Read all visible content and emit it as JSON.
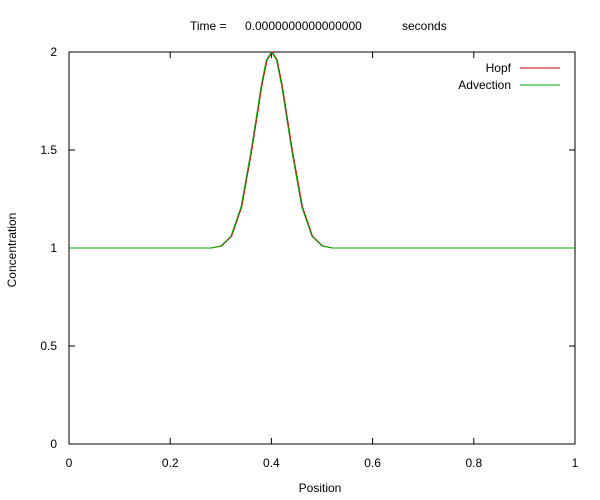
{
  "chart_data": {
    "type": "line",
    "title": {
      "prefix": "Time =",
      "value": "0.0000000000000000",
      "unit": "seconds"
    },
    "xlabel": "Position",
    "ylabel": "Concentration",
    "xlim": [
      0,
      1
    ],
    "ylim": [
      0,
      2
    ],
    "x_ticks": [
      "0",
      "0.2",
      "0.4",
      "0.6",
      "0.8",
      "1"
    ],
    "y_ticks": [
      "0",
      "0.5",
      "1",
      "1.5",
      "2"
    ],
    "grid": false,
    "legend_position": "top-right",
    "series": [
      {
        "name": "Hopf",
        "color": "#cc0000",
        "x": [
          0,
          0.28,
          0.3,
          0.32,
          0.34,
          0.36,
          0.38,
          0.39,
          0.4,
          0.41,
          0.42,
          0.44,
          0.46,
          0.48,
          0.5,
          0.52,
          1
        ],
        "y": [
          1,
          1,
          1.01,
          1.06,
          1.21,
          1.5,
          1.83,
          1.96,
          2.0,
          1.96,
          1.83,
          1.5,
          1.21,
          1.06,
          1.01,
          1,
          1
        ]
      },
      {
        "name": "Advection",
        "color": "#00aa00",
        "x": [
          0,
          0.28,
          0.3,
          0.32,
          0.34,
          0.36,
          0.38,
          0.39,
          0.4,
          0.41,
          0.42,
          0.44,
          0.46,
          0.48,
          0.5,
          0.52,
          1
        ],
        "y": [
          1,
          1,
          1.01,
          1.06,
          1.21,
          1.5,
          1.83,
          1.96,
          2.0,
          1.96,
          1.83,
          1.5,
          1.21,
          1.06,
          1.01,
          1,
          1
        ]
      }
    ]
  }
}
